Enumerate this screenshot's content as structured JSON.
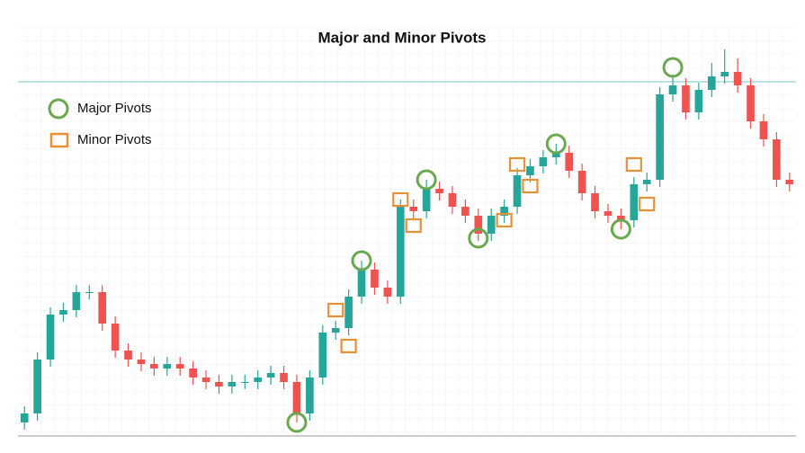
{
  "chart_data": {
    "type": "candlestick",
    "title": "Major and Minor Pivots",
    "ylim": [
      0,
      450
    ],
    "up_color": "#26a69a",
    "down_color": "#ef5350",
    "open": [
      15,
      25,
      85,
      135,
      140,
      160,
      160,
      125,
      95,
      85,
      80,
      75,
      80,
      75,
      65,
      60,
      55,
      60,
      60,
      65,
      70,
      60,
      25,
      65,
      115,
      120,
      155,
      185,
      165,
      155,
      255,
      250,
      275,
      270,
      255,
      245,
      225,
      245,
      255,
      290,
      300,
      310,
      315,
      295,
      270,
      250,
      245,
      240,
      280,
      285,
      380,
      390,
      360,
      385,
      400,
      405,
      390,
      350,
      330,
      285
    ],
    "close": [
      25,
      85,
      135,
      140,
      160,
      160,
      125,
      95,
      85,
      80,
      75,
      80,
      75,
      65,
      60,
      55,
      60,
      60,
      65,
      70,
      60,
      25,
      65,
      115,
      120,
      155,
      185,
      165,
      155,
      255,
      250,
      275,
      270,
      255,
      245,
      225,
      245,
      255,
      290,
      300,
      310,
      315,
      295,
      270,
      250,
      245,
      240,
      280,
      285,
      380,
      390,
      360,
      385,
      400,
      405,
      390,
      350,
      330,
      285,
      280
    ],
    "high": [
      33,
      93,
      143,
      148,
      168,
      168,
      168,
      133,
      103,
      93,
      88,
      88,
      88,
      83,
      73,
      68,
      68,
      68,
      73,
      78,
      78,
      68,
      73,
      123,
      128,
      163,
      195,
      193,
      173,
      263,
      263,
      285,
      283,
      278,
      263,
      253,
      253,
      263,
      298,
      308,
      318,
      325,
      323,
      303,
      278,
      258,
      253,
      288,
      293,
      388,
      402,
      398,
      393,
      415,
      430,
      420,
      398,
      358,
      338,
      293
    ],
    "low": [
      7,
      17,
      77,
      127,
      132,
      152,
      117,
      87,
      77,
      72,
      67,
      67,
      67,
      57,
      52,
      47,
      47,
      52,
      52,
      57,
      52,
      15,
      17,
      57,
      107,
      112,
      147,
      157,
      147,
      147,
      242,
      242,
      262,
      247,
      237,
      217,
      217,
      237,
      247,
      282,
      292,
      302,
      287,
      262,
      242,
      237,
      230,
      232,
      272,
      277,
      372,
      352,
      352,
      377,
      392,
      382,
      342,
      322,
      277,
      272
    ],
    "reference_line": {
      "value": 394,
      "color": "#a8dcd9"
    },
    "pivots": [
      {
        "name": "Major Pivots",
        "marker": "circle",
        "color": "#6aa84f",
        "values": [
          null,
          null,
          null,
          null,
          null,
          null,
          null,
          null,
          null,
          null,
          null,
          null,
          null,
          null,
          null,
          null,
          null,
          null,
          null,
          null,
          null,
          15,
          null,
          null,
          null,
          null,
          195,
          null,
          null,
          null,
          null,
          285,
          null,
          null,
          null,
          220,
          null,
          null,
          null,
          null,
          null,
          325,
          null,
          null,
          null,
          null,
          230,
          null,
          null,
          null,
          410,
          null,
          null,
          null,
          null,
          null,
          null,
          null,
          null,
          null
        ]
      },
      {
        "name": "Minor Pivots",
        "marker": "square",
        "color": "#e69138",
        "values": [
          null,
          null,
          null,
          null,
          null,
          null,
          null,
          null,
          null,
          null,
          null,
          null,
          null,
          null,
          null,
          null,
          null,
          null,
          null,
          null,
          null,
          null,
          null,
          null,
          140,
          100,
          null,
          null,
          null,
          263,
          234,
          null,
          null,
          null,
          null,
          null,
          null,
          240,
          302,
          278,
          null,
          null,
          null,
          null,
          null,
          null,
          null,
          302,
          258,
          null,
          null,
          null,
          null,
          null,
          null,
          null,
          null,
          null,
          null,
          null
        ]
      }
    ]
  }
}
